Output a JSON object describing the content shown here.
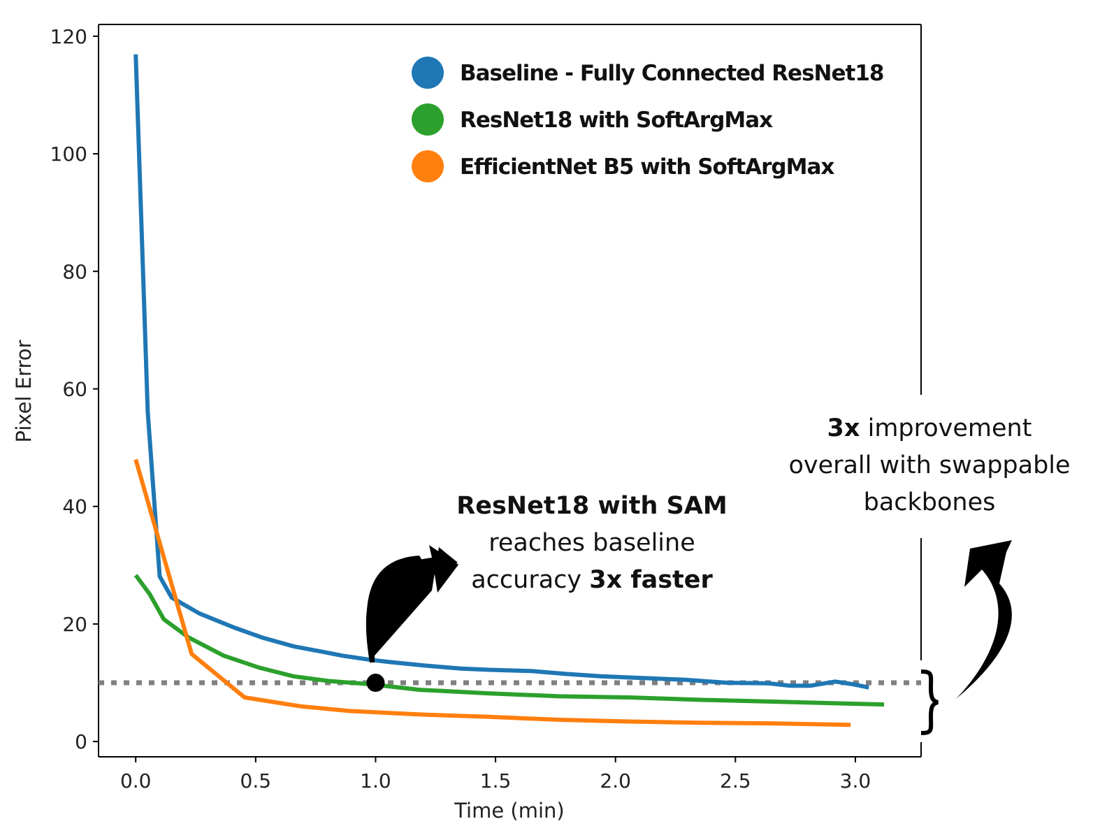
{
  "chart_data": {
    "type": "line",
    "title": "",
    "xlabel": "Time (min)",
    "ylabel": "Pixel Error",
    "xlim": [
      -0.155,
      3.274
    ],
    "ylim": [
      -2.6,
      122
    ],
    "xticks": [
      0.0,
      0.5,
      1.0,
      1.5,
      2.0,
      2.5,
      3.0
    ],
    "xtick_labels": [
      "0.0",
      "0.5",
      "1.0",
      "1.5",
      "2.0",
      "2.5",
      "3.0"
    ],
    "yticks": [
      0,
      20,
      40,
      60,
      80,
      100,
      120
    ],
    "ytick_labels": [
      "0",
      "20",
      "40",
      "60",
      "80",
      "100",
      "120"
    ],
    "grid": false,
    "legend_position": "top-right",
    "series": [
      {
        "name": "Baseline - Fully Connected ResNet18",
        "color": "#1f77b4",
        "x": [
          0,
          0.05,
          0.1,
          0.15,
          0.265,
          0.41,
          0.527,
          0.658,
          0.775,
          0.862,
          0.979,
          1.066,
          1.212,
          1.357,
          1.474,
          1.649,
          1.794,
          1.94,
          2.115,
          2.29,
          2.464,
          2.639,
          2.726,
          2.814,
          2.916,
          2.989,
          3.056
        ],
        "y": [
          116.9,
          56.1,
          28.1,
          24.5,
          21.8,
          19.4,
          17.7,
          16.2,
          15.3,
          14.6,
          13.9,
          13.5,
          12.9,
          12.4,
          12.2,
          12.0,
          11.5,
          11.1,
          10.8,
          10.5,
          10.0,
          9.9,
          9.5,
          9.5,
          10.2,
          9.75,
          9.2
        ]
      },
      {
        "name": "ResNet18 with SoftArgMax",
        "color": "#2ca02c",
        "x": [
          0,
          0.058,
          0.117,
          0.221,
          0.367,
          0.513,
          0.658,
          0.804,
          0.979,
          1.183,
          1.474,
          1.765,
          2.056,
          2.348,
          2.639,
          2.93,
          3.12
        ],
        "y": [
          28.3,
          25.1,
          20.8,
          17.7,
          14.6,
          12.6,
          11.1,
          10.3,
          9.75,
          8.8,
          8.2,
          7.7,
          7.5,
          7.1,
          6.8,
          6.5,
          6.3
        ]
      },
      {
        "name": "EfficientNet B5 with SoftArgMax",
        "color": "#ff7f0e",
        "x": [
          0,
          0.233,
          0.454,
          0.687,
          0.891,
          1.183,
          1.474,
          1.765,
          2.056,
          2.348,
          2.639,
          2.98
        ],
        "y": [
          48.0,
          14.9,
          7.5,
          6.0,
          5.2,
          4.6,
          4.2,
          3.7,
          3.4,
          3.2,
          3.1,
          2.85
        ]
      }
    ],
    "reference_line": {
      "y": 10,
      "style": "dotted",
      "color": "#808080"
    },
    "marker_point": {
      "x": 1.0,
      "y": 10
    },
    "annotations": {
      "sam": {
        "line1_bold": "ResNet18 with SAM",
        "line2": "reaches baseline",
        "line3_pre": "accuracy ",
        "line3_bold": "3x faster"
      },
      "overall": {
        "line1_bold": "3x",
        "line1_rest": " improvement",
        "line2": "overall with swappable",
        "line3": "backbones"
      }
    }
  }
}
